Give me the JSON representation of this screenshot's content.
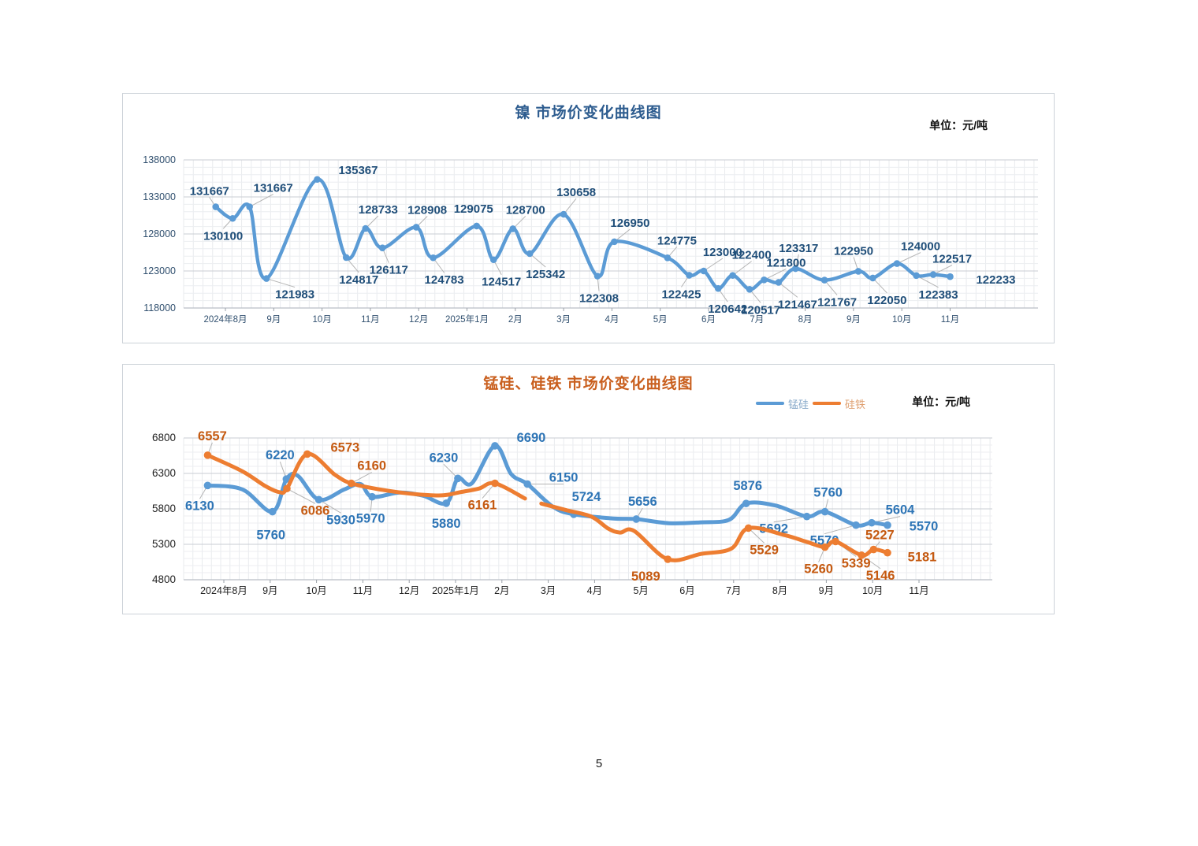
{
  "page": {
    "number": "5"
  },
  "chart_data": [
    {
      "type": "line",
      "title": "镍  市场价变化曲线图",
      "unit": "单位：元/吨",
      "ylabel": "元/吨",
      "ylim": [
        118000,
        138000
      ],
      "y_ticks": [
        "138000",
        "133000",
        "128000",
        "123000",
        "118000"
      ],
      "grid": "on",
      "x_months": [
        "2024年8月",
        "9月",
        "10月",
        "11月",
        "12月",
        "2025年1月",
        "2月",
        "3月",
        "4月",
        "5月",
        "6月",
        "7月",
        "8月",
        "9月",
        "10月",
        "11月"
      ],
      "series": [
        {
          "name": "镍",
          "color": "#5b9bd5",
          "label_color": "#1f4e79",
          "segments": [
            [
              [
                -0.2,
                131667,
                "131667",
                -8,
                -20,
                1
              ],
              [
                0.15,
                130100,
                "130100",
                -12,
                22,
                1
              ],
              [
                0.5,
                131667,
                "131667",
                30,
                -24,
                1
              ],
              [
                0.85,
                121983,
                "121983",
                36,
                20,
                1
              ],
              [
                1.9,
                135367,
                "135367",
                52,
                -12,
                0
              ],
              [
                2.5,
                124817,
                "124817",
                16,
                28,
                1
              ],
              [
                2.9,
                128733,
                "128733",
                16,
                -24,
                1
              ],
              [
                3.25,
                126117,
                "126117",
                8,
                28,
                1
              ],
              [
                3.95,
                128908,
                "128908",
                14,
                -22,
                1
              ],
              [
                4.3,
                124783,
                "124783",
                14,
                28,
                1
              ],
              [
                5.2,
                129075,
                "129075",
                -4,
                -22,
                0
              ],
              [
                5.55,
                124517,
                "124517",
                10,
                28,
                1
              ],
              [
                5.95,
                128700,
                "128700",
                16,
                -24,
                1
              ],
              [
                6.3,
                125342,
                "125342",
                20,
                26,
                1
              ],
              [
                7.0,
                130658,
                "130658",
                16,
                -28,
                1
              ],
              [
                7.7,
                122308,
                "122308",
                2,
                28,
                1
              ],
              [
                8.05,
                126950,
                "126950",
                20,
                -24,
                1
              ],
              [
                9.15,
                124775,
                "124775",
                12,
                -22,
                1
              ],
              [
                9.6,
                122425,
                "122425",
                -10,
                24,
                1
              ],
              [
                9.9,
                123000,
                "123000",
                24,
                -24,
                1
              ],
              [
                10.2,
                120642,
                "120642",
                12,
                26,
                1
              ],
              [
                10.5,
                122400,
                "122400",
                24,
                -26,
                1
              ],
              [
                10.85,
                120517,
                "120517",
                14,
                26,
                1
              ],
              [
                11.15,
                121800,
                "121800",
                28,
                -22,
                1
              ],
              [
                11.45,
                121467,
                "121467",
                24,
                28,
                1
              ],
              [
                11.8,
                123317,
                "123317",
                4,
                -26,
                1
              ],
              [
                12.4,
                121767,
                "121767",
                16,
                28,
                1
              ],
              [
                13.1,
                122950,
                "122950",
                -6,
                -26,
                1
              ],
              [
                13.4,
                122050,
                "122050",
                18,
                28,
                1
              ],
              [
                13.9,
                124000,
                "124000",
                30,
                -22,
                1
              ],
              [
                14.3,
                122383,
                "122383",
                28,
                24,
                1
              ],
              [
                14.65,
                122517,
                "122517",
                24,
                -20,
                1
              ],
              [
                15.0,
                122233,
                "122233",
                58,
                4,
                0
              ]
            ]
          ]
        }
      ]
    },
    {
      "type": "line",
      "title": "锰硅、硅铁  市场价变化曲线图",
      "unit": "单位：元/吨",
      "ylabel": "元/吨",
      "ylim": [
        4800,
        6800
      ],
      "y_ticks": [
        "6800",
        "6300",
        "5800",
        "5300",
        "4800"
      ],
      "grid": "on",
      "legend_position": "top-right",
      "x_months": [
        "2024年8月",
        "9月",
        "10月",
        "11月",
        "12月",
        "2025年1月",
        "2月",
        "3月",
        "4月",
        "5月",
        "6月",
        "7月",
        "8月",
        "9月",
        "10月",
        "11月"
      ],
      "series": [
        {
          "name": "锰硅",
          "color": "#5b9bd5",
          "label_color": "#2e75b6",
          "segments": [
            [
              [
                -0.35,
                6130,
                "6130",
                -10,
                26,
                1
              ],
              [
                0.4,
                6075
              ],
              [
                1.05,
                5760,
                "5760",
                -2,
                30,
                0
              ],
              [
                1.35,
                6220,
                "6220",
                -8,
                -30,
                1
              ],
              [
                1.6,
                6265
              ],
              [
                2.05,
                5930,
                "5930",
                28,
                26,
                1
              ],
              [
                2.6,
                6075
              ],
              [
                2.95,
                6150
              ],
              [
                3.2,
                5970,
                "5970",
                -2,
                28,
                1
              ],
              [
                3.8,
                6030
              ],
              [
                4.3,
                5985
              ],
              [
                4.8,
                5880,
                "5880",
                0,
                26,
                0
              ],
              [
                5.05,
                6230,
                "6230",
                -18,
                -26,
                1
              ],
              [
                5.35,
                6160
              ],
              [
                5.85,
                6690,
                "6690",
                46,
                -10,
                0
              ],
              [
                6.2,
                6290
              ],
              [
                6.55,
                6150,
                "6150",
                46,
                -8,
                1
              ],
              [
                7.1,
                5830
              ],
              [
                7.55,
                5724,
                "5724",
                16,
                -22,
                0
              ],
              [
                8.4,
                5665
              ],
              [
                8.9,
                5656,
                "5656",
                8,
                -22,
                1
              ],
              [
                9.6,
                5598
              ],
              [
                10.3,
                5610
              ],
              [
                10.9,
                5645
              ],
              [
                11.27,
                5876,
                "5876",
                2,
                -22,
                0
              ],
              [
                11.9,
                5848
              ],
              [
                12.58,
                5692,
                "5692",
                -42,
                16,
                1
              ],
              [
                12.97,
                5760,
                "5760",
                4,
                -24,
                1
              ],
              [
                13.64,
                5570,
                "5570",
                -40,
                20,
                1
              ],
              [
                13.98,
                5604,
                "5604",
                36,
                -16,
                1
              ],
              [
                14.32,
                5570,
                "5570",
                46,
                2,
                0
              ]
            ]
          ]
        },
        {
          "name": "硅铁",
          "color": "#ed7d31",
          "label_color": "#c55a11",
          "segments": [
            [
              [
                -0.35,
                6557,
                "6557",
                6,
                -24,
                1
              ],
              [
                0.4,
                6330
              ],
              [
                0.9,
                6120
              ],
              [
                1.2,
                6035
              ],
              [
                1.36,
                6086,
                "6086",
                36,
                28,
                1
              ],
              [
                1.8,
                6573,
                "6573",
                48,
                -8,
                0
              ],
              [
                2.4,
                6280
              ],
              [
                2.75,
                6160,
                "6160",
                26,
                -22,
                1
              ],
              [
                3.4,
                6070
              ],
              [
                4.1,
                6010
              ],
              [
                4.7,
                5990
              ],
              [
                5.1,
                6035
              ],
              [
                5.5,
                6085
              ],
              [
                5.85,
                6161,
                "6161",
                -16,
                28,
                1
              ],
              [
                6.5,
                5945
              ]
            ],
            [
              [
                6.85,
                5875
              ],
              [
                7.4,
                5780
              ],
              [
                7.93,
                5690
              ],
              [
                8.3,
                5520
              ],
              [
                8.55,
                5465
              ],
              [
                8.85,
                5490
              ],
              [
                9.58,
                5089,
                "5089",
                -28,
                22,
                0
              ],
              [
                10.3,
                5165
              ],
              [
                10.95,
                5240
              ],
              [
                11.32,
                5529,
                "5529",
                20,
                28,
                1
              ],
              [
                12.1,
                5430
              ],
              [
                12.6,
                5330
              ],
              [
                12.97,
                5260,
                "5260",
                -8,
                28,
                1
              ],
              [
                13.2,
                5339,
                "5339",
                26,
                28,
                1
              ],
              [
                13.76,
                5146,
                "5146",
                24,
                26,
                1
              ],
              [
                14.02,
                5227,
                "5227",
                8,
                -18,
                1
              ],
              [
                14.32,
                5181,
                "5181",
                44,
                6,
                0
              ]
            ]
          ]
        }
      ]
    }
  ]
}
